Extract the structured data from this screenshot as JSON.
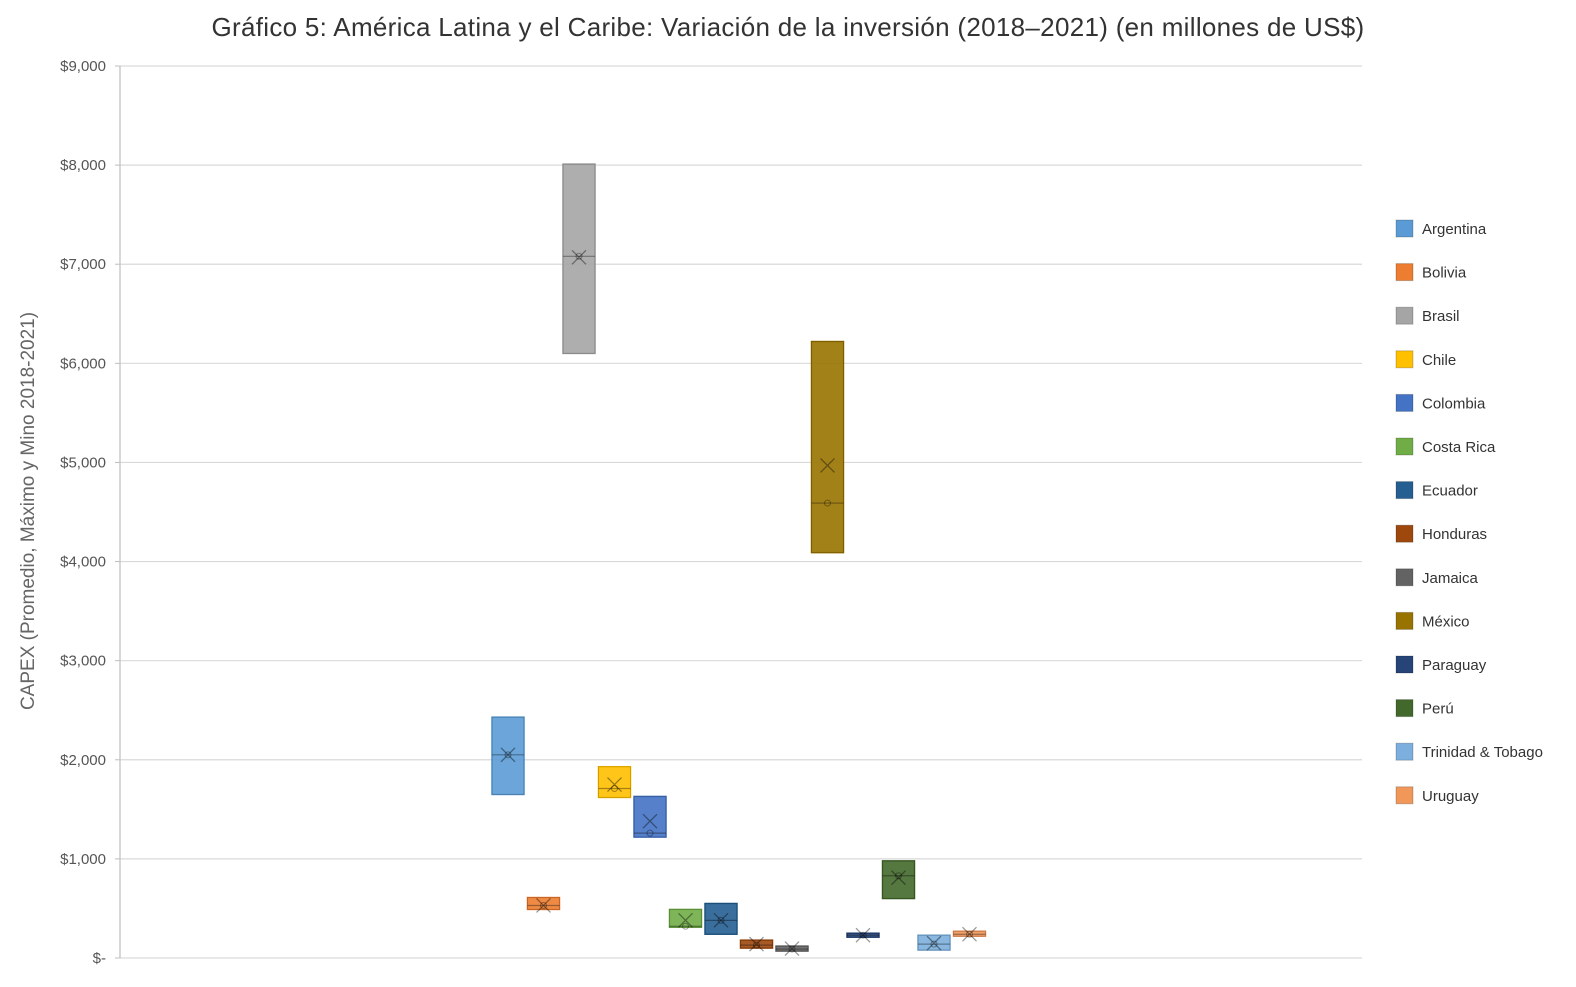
{
  "chart_data": {
    "type": "box",
    "title": "Gráfico 5: América Latina y el Caribe: Variación de la inversión (2018–2021) (en millones de US$)",
    "ylabel": "CAPEX (Promedio, Máximo y Mino 2018-2021)",
    "xlabel": "",
    "ylim": [
      0,
      9000
    ],
    "yticks": [
      0,
      1000,
      2000,
      3000,
      4000,
      5000,
      6000,
      7000,
      8000,
      9000
    ],
    "ytick_labels": [
      "$-",
      "$1,000",
      "$2,000",
      "$3,000",
      "$4,000",
      "$5,000",
      "$6,000",
      "$7,000",
      "$8,000",
      "$9,000"
    ],
    "grid": true,
    "legend_position": "right",
    "series": [
      {
        "name": "Argentina",
        "color": "#5b9bd5",
        "min": 1650,
        "max": 2430,
        "median": 2050,
        "mean": 2050
      },
      {
        "name": "Bolivia",
        "color": "#ed7d31",
        "min": 490,
        "max": 610,
        "median": 530,
        "mean": 530
      },
      {
        "name": "Brasil",
        "color": "#a5a5a5",
        "min": 6100,
        "max": 8010,
        "median": 7080,
        "mean": 7070
      },
      {
        "name": "Chile",
        "color": "#ffc000",
        "min": 1620,
        "max": 1930,
        "median": 1710,
        "mean": 1750
      },
      {
        "name": "Colombia",
        "color": "#4472c4",
        "min": 1220,
        "max": 1630,
        "median": 1260,
        "mean": 1380
      },
      {
        "name": "Costa Rica",
        "color": "#70ad47",
        "min": 310,
        "max": 490,
        "median": 320,
        "mean": 380
      },
      {
        "name": "Ecuador",
        "color": "#255e91",
        "min": 240,
        "max": 550,
        "median": 380,
        "mean": 380
      },
      {
        "name": "Honduras",
        "color": "#9e480e",
        "min": 100,
        "max": 180,
        "median": 130,
        "mean": 140
      },
      {
        "name": "Jamaica",
        "color": "#636363",
        "min": 70,
        "max": 120,
        "median": 90,
        "mean": 95
      },
      {
        "name": "México",
        "color": "#997300",
        "min": 4090,
        "max": 6220,
        "median": 4590,
        "mean": 4970
      },
      {
        "name": "Paraguay",
        "color": "#264478",
        "min": 210,
        "max": 250,
        "median": 230,
        "mean": 230
      },
      {
        "name": "Perú",
        "color": "#43682b",
        "min": 600,
        "max": 980,
        "median": 830,
        "mean": 810
      },
      {
        "name": "Trinidad & Tobago",
        "color": "#7cafdd",
        "min": 80,
        "max": 230,
        "median": 140,
        "mean": 150
      },
      {
        "name": "Uruguay",
        "color": "#f1975a",
        "min": 220,
        "max": 270,
        "median": 240,
        "mean": 240
      }
    ]
  }
}
